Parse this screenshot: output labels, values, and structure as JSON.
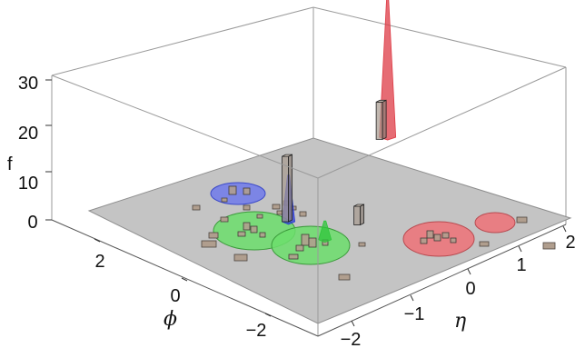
{
  "chart_data": {
    "type": "bar3d",
    "zlabel": "f",
    "xlabel": "η",
    "ylabel": "ϕ",
    "z_ticks": [
      "0",
      "10",
      "20",
      "30"
    ],
    "eta_ticks": [
      "−2",
      "−1",
      "0",
      "1",
      "2"
    ],
    "phi_ticks": [
      "2",
      "0",
      "−2"
    ],
    "zlim": [
      0,
      30
    ],
    "xlim": [
      -2.5,
      2.5
    ],
    "ylim": [
      -3.14,
      3.14
    ],
    "tall_bars": [
      {
        "eta": -0.6,
        "phi": 0.3,
        "f": 14
      },
      {
        "eta": 2.2,
        "phi": 1.6,
        "f": 8
      },
      {
        "eta": 0.1,
        "phi": -0.7,
        "f": 4
      }
    ],
    "peaks": [
      {
        "color": "#2a3ad6",
        "eta": -0.6,
        "phi": 0.3,
        "f": 10
      },
      {
        "color": "#2fc43b",
        "eta": -0.6,
        "phi": -0.7,
        "f": 4
      },
      {
        "color": "#dd3b45",
        "eta": 2.3,
        "phi": 1.6,
        "f": 30
      }
    ],
    "colors": {
      "plane": "#c4c4c4",
      "bar": "#a79a8e",
      "blue": "#6470f0",
      "green": "#6cde6c",
      "red": "#ee7278"
    }
  }
}
